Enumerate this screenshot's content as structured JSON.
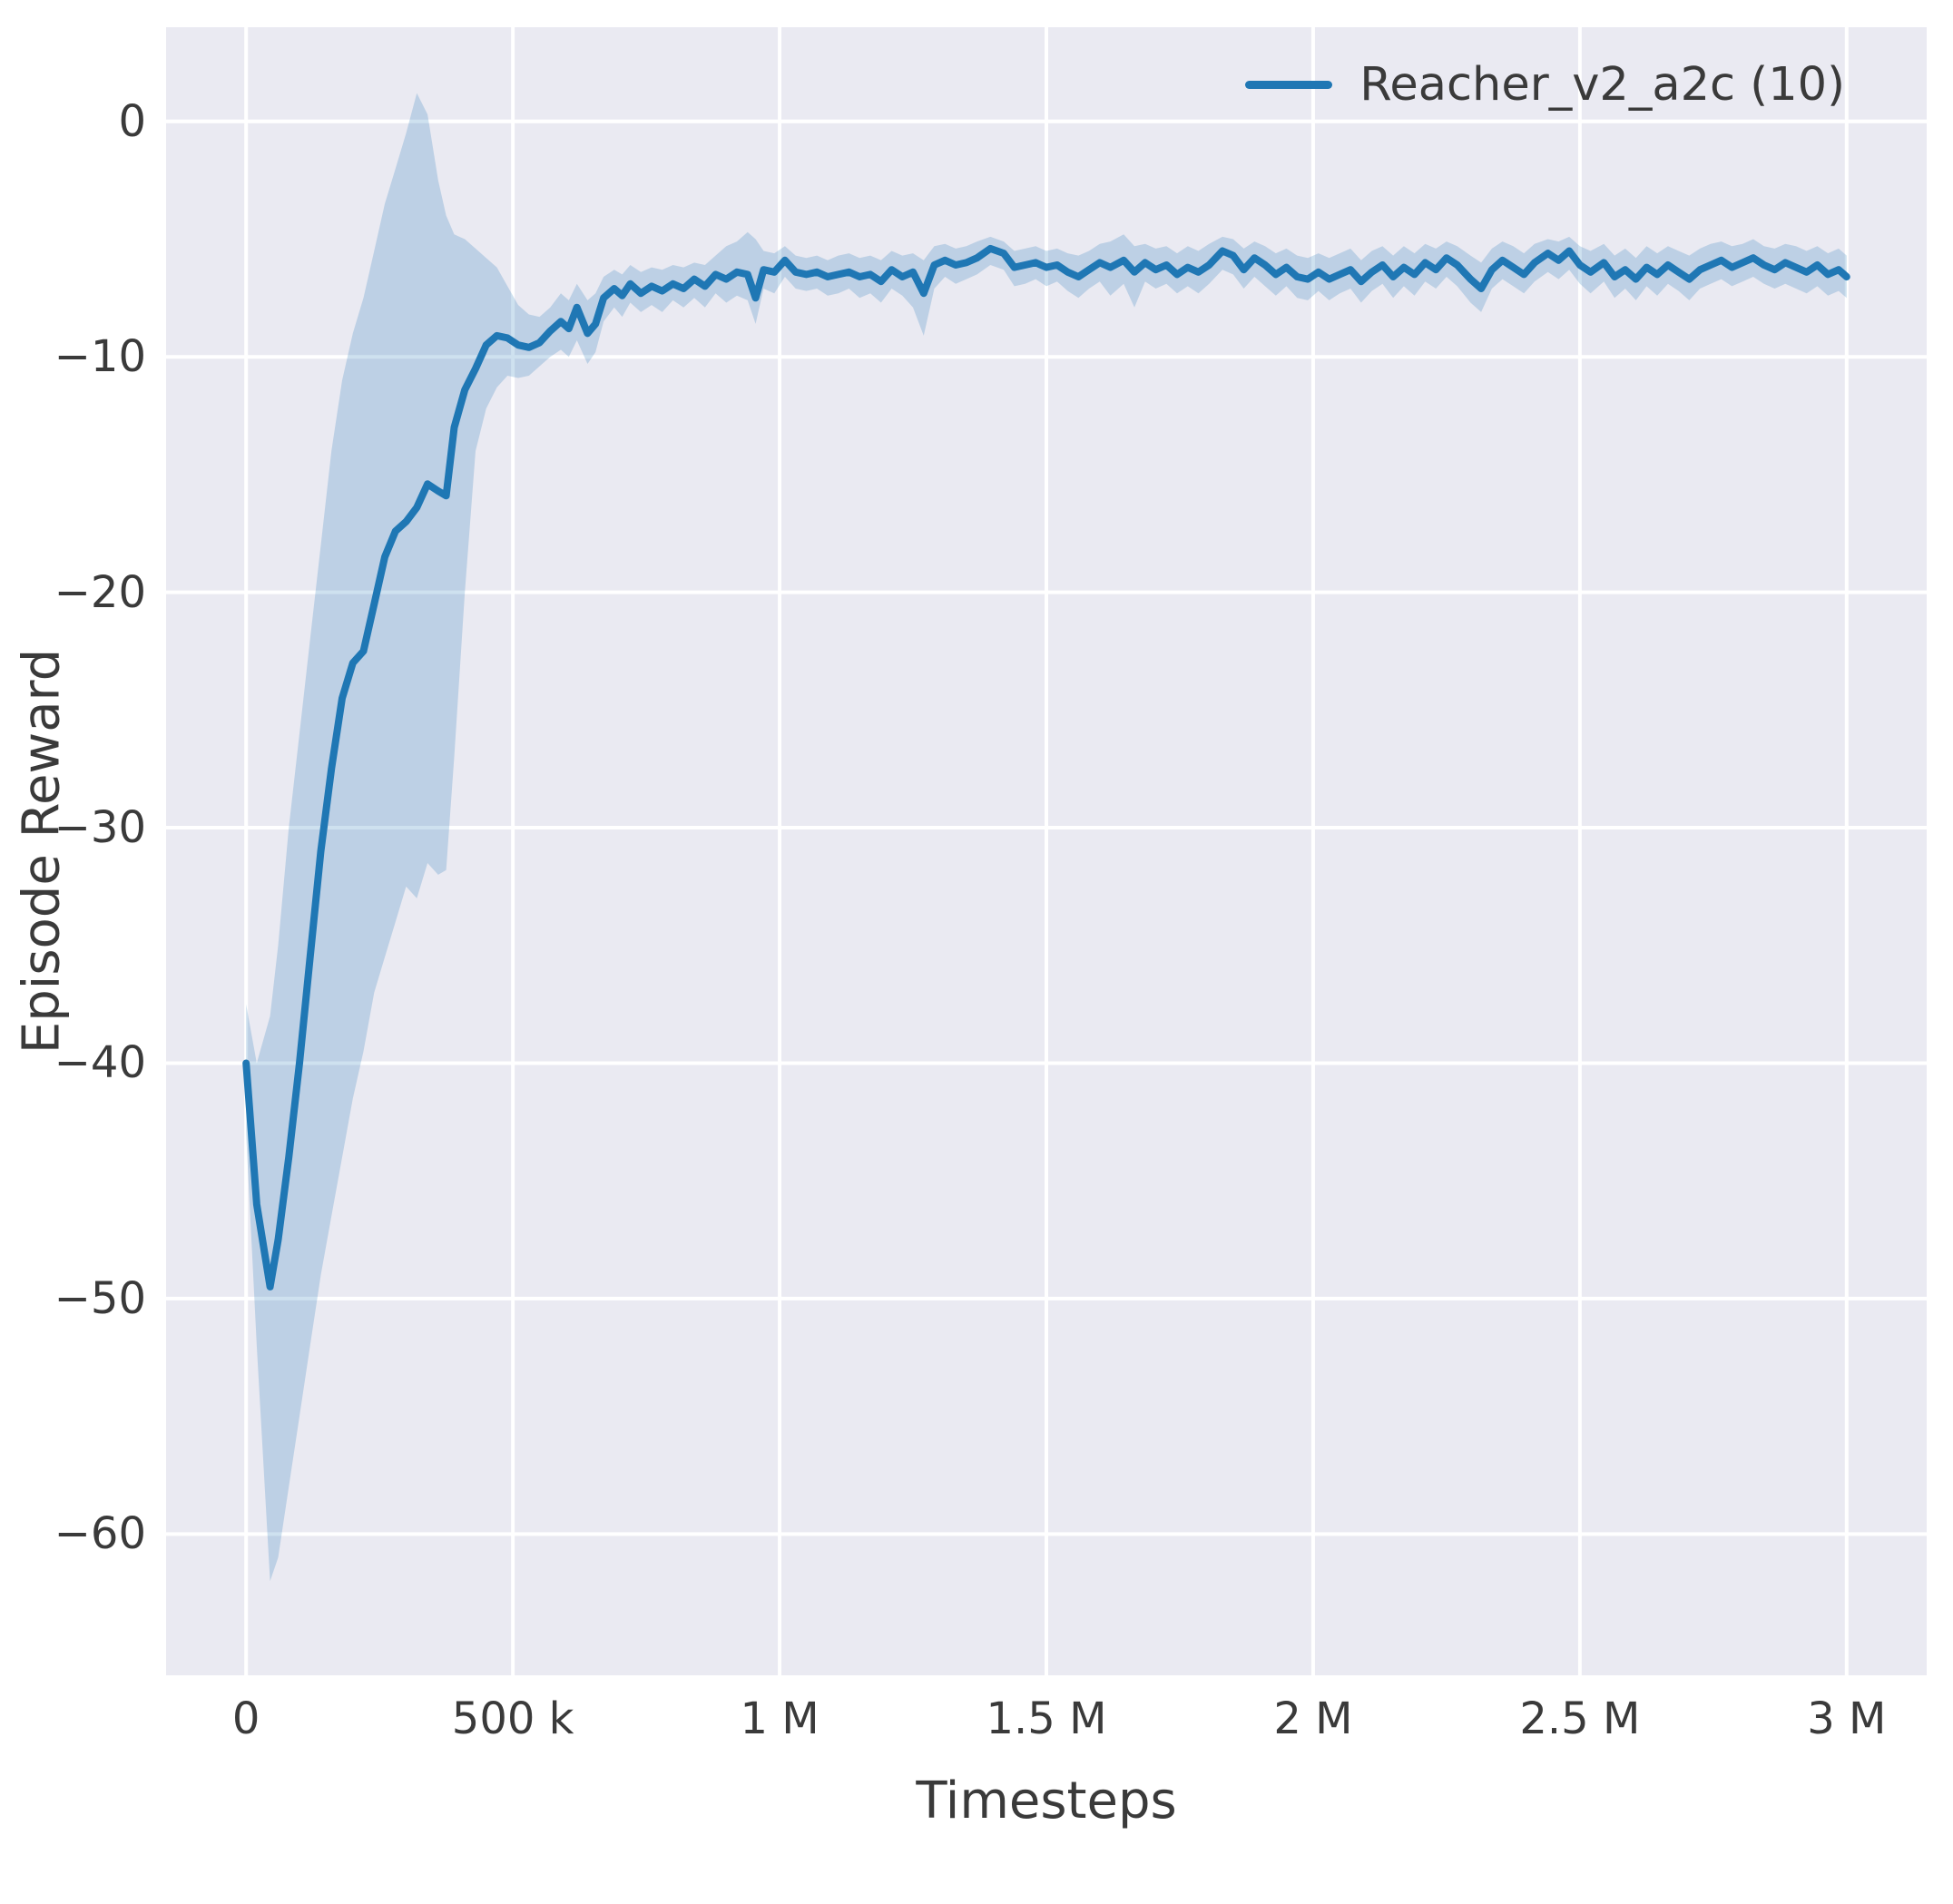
{
  "chart_data": {
    "type": "line",
    "title": "",
    "xlabel": "Timesteps",
    "ylabel": "Episode Reward",
    "grid": true,
    "legend_position": "upper right",
    "plot_background": "#eaeaf2",
    "grid_color": "#ffffff",
    "line_color": "#1f77b4",
    "band_color": "#1f77b4",
    "band_opacity": 0.22,
    "x_unit": "thousand timesteps",
    "xlim": [
      -150,
      3150
    ],
    "ylim": [
      -66,
      4
    ],
    "xticks": {
      "values": [
        0,
        500,
        1000,
        1500,
        2000,
        2500,
        3000
      ],
      "labels": [
        "0",
        "500 k",
        "1 M",
        "1.5 M",
        "2 M",
        "2.5 M",
        "3 M"
      ]
    },
    "yticks": {
      "values": [
        0,
        -10,
        -20,
        -30,
        -40,
        -50,
        -60
      ],
      "labels": [
        "0",
        "−10",
        "−20",
        "−30",
        "−40",
        "−50",
        "−60"
      ]
    },
    "series": [
      {
        "name": "Reacher_v2_a2c (10)",
        "points_format": [
          "x_k",
          "mean",
          "lower",
          "upper"
        ],
        "points": [
          [
            0,
            -40,
            -43,
            -37.5
          ],
          [
            20,
            -46,
            -52,
            -40
          ],
          [
            45,
            -49.5,
            -62,
            -38
          ],
          [
            60,
            -47.5,
            -61,
            -35
          ],
          [
            80,
            -44,
            -58,
            -30
          ],
          [
            100,
            -40,
            -55,
            -26
          ],
          [
            120,
            -35.5,
            -52,
            -22
          ],
          [
            140,
            -31,
            -49,
            -18
          ],
          [
            160,
            -27.5,
            -46.5,
            -14
          ],
          [
            180,
            -24.5,
            -44,
            -11
          ],
          [
            200,
            -23,
            -41.5,
            -9
          ],
          [
            220,
            -22.5,
            -39.5,
            -7.5
          ],
          [
            240,
            -20.5,
            -37,
            -5.5
          ],
          [
            260,
            -18.5,
            -35.5,
            -3.5
          ],
          [
            280,
            -17.4,
            -34,
            -2
          ],
          [
            300,
            -17,
            -32.5,
            -0.5
          ],
          [
            320,
            -16.4,
            -33,
            1.2
          ],
          [
            340,
            -15.4,
            -31.5,
            0.3
          ],
          [
            360,
            -15.7,
            -32,
            -2.5
          ],
          [
            375,
            -15.9,
            -31.8,
            -4
          ],
          [
            390,
            -13,
            -27,
            -4.8
          ],
          [
            410,
            -11.4,
            -20,
            -5
          ],
          [
            430,
            -10.5,
            -14,
            -5.4
          ],
          [
            450,
            -9.5,
            -12.2,
            -5.8
          ],
          [
            470,
            -9.1,
            -11.3,
            -6.2
          ],
          [
            490,
            -9.2,
            -10.8,
            -7
          ],
          [
            510,
            -9.5,
            -10.9,
            -7.8
          ],
          [
            530,
            -9.6,
            -10.8,
            -8.2
          ],
          [
            550,
            -9.4,
            -10.4,
            -8.3
          ],
          [
            570,
            -8.9,
            -10,
            -7.9
          ],
          [
            590,
            -8.5,
            -9.7,
            -7.3
          ],
          [
            605,
            -8.8,
            -10,
            -7.6
          ],
          [
            620,
            -7.9,
            -9.3,
            -6.9
          ],
          [
            640,
            -9,
            -10.3,
            -7.6
          ],
          [
            655,
            -8.6,
            -9.8,
            -7.3
          ],
          [
            670,
            -7.5,
            -8.5,
            -6.6
          ],
          [
            690,
            -7.1,
            -7.9,
            -6.3
          ],
          [
            705,
            -7.4,
            -8.3,
            -6.5
          ],
          [
            720,
            -6.9,
            -7.7,
            -6.1
          ],
          [
            740,
            -7.3,
            -8.1,
            -6.4
          ],
          [
            760,
            -7,
            -7.8,
            -6.2
          ],
          [
            780,
            -7.2,
            -8.1,
            -6.3
          ],
          [
            800,
            -6.9,
            -7.6,
            -6.1
          ],
          [
            820,
            -7.1,
            -7.9,
            -6.2
          ],
          [
            840,
            -6.7,
            -7.5,
            -6
          ],
          [
            860,
            -7,
            -7.9,
            -6.1
          ],
          [
            880,
            -6.5,
            -7.3,
            -5.7
          ],
          [
            900,
            -6.7,
            -7.7,
            -5.3
          ],
          [
            920,
            -6.4,
            -7.4,
            -5.1
          ],
          [
            940,
            -6.5,
            -7.6,
            -4.7
          ],
          [
            955,
            -7.5,
            -8.6,
            -5
          ],
          [
            970,
            -6.3,
            -7.1,
            -5.5
          ],
          [
            990,
            -6.4,
            -7.3,
            -5.6
          ],
          [
            1010,
            -5.9,
            -6.6,
            -5.3
          ],
          [
            1030,
            -6.4,
            -7.1,
            -5.7
          ],
          [
            1050,
            -6.5,
            -7.2,
            -5.8
          ],
          [
            1070,
            -6.4,
            -7.1,
            -5.7
          ],
          [
            1090,
            -6.6,
            -7.4,
            -5.9
          ],
          [
            1110,
            -6.5,
            -7.3,
            -5.7
          ],
          [
            1130,
            -6.4,
            -7.1,
            -5.6
          ],
          [
            1150,
            -6.6,
            -7.5,
            -5.8
          ],
          [
            1170,
            -6.5,
            -7.3,
            -5.7
          ],
          [
            1190,
            -6.8,
            -7.7,
            -5.9
          ],
          [
            1210,
            -6.3,
            -7.1,
            -5.5
          ],
          [
            1230,
            -6.6,
            -7.4,
            -5.7
          ],
          [
            1250,
            -6.4,
            -7.9,
            -5.6
          ],
          [
            1270,
            -7.3,
            -9.1,
            -5.9
          ],
          [
            1290,
            -6.1,
            -7.1,
            -5.3
          ],
          [
            1310,
            -5.9,
            -6.6,
            -5.2
          ],
          [
            1330,
            -6.1,
            -6.9,
            -5.4
          ],
          [
            1350,
            -6,
            -6.7,
            -5.3
          ],
          [
            1370,
            -5.8,
            -6.5,
            -5.1
          ],
          [
            1395,
            -5.4,
            -6.1,
            -4.9
          ],
          [
            1420,
            -5.6,
            -6.3,
            -5.1
          ],
          [
            1440,
            -6.2,
            -7,
            -5.5
          ],
          [
            1460,
            -6.1,
            -6.9,
            -5.4
          ],
          [
            1480,
            -6,
            -6.7,
            -5.3
          ],
          [
            1500,
            -6.2,
            -7,
            -5.5
          ],
          [
            1520,
            -6.1,
            -6.8,
            -5.4
          ],
          [
            1540,
            -6.4,
            -7.2,
            -5.6
          ],
          [
            1560,
            -6.6,
            -7.5,
            -5.7
          ],
          [
            1580,
            -6.3,
            -7.1,
            -5.5
          ],
          [
            1600,
            -6,
            -6.8,
            -5.2
          ],
          [
            1620,
            -6.2,
            -7.4,
            -5.1
          ],
          [
            1645,
            -5.9,
            -6.9,
            -4.8
          ],
          [
            1665,
            -6.4,
            -7.9,
            -5.3
          ],
          [
            1685,
            -6,
            -6.8,
            -5.2
          ],
          [
            1705,
            -6.3,
            -7.1,
            -5.4
          ],
          [
            1725,
            -6.1,
            -6.9,
            -5.3
          ],
          [
            1745,
            -6.5,
            -7.3,
            -5.6
          ],
          [
            1765,
            -6.2,
            -7,
            -5.3
          ],
          [
            1785,
            -6.4,
            -7.3,
            -5.5
          ],
          [
            1805,
            -6.1,
            -6.9,
            -5.2
          ],
          [
            1830,
            -5.5,
            -6.3,
            -4.9
          ],
          [
            1850,
            -5.7,
            -6.5,
            -5
          ],
          [
            1870,
            -6.3,
            -7.1,
            -5.4
          ],
          [
            1890,
            -5.8,
            -6.6,
            -5.1
          ],
          [
            1910,
            -6.1,
            -7,
            -5.3
          ],
          [
            1930,
            -6.5,
            -7.4,
            -5.6
          ],
          [
            1950,
            -6.2,
            -7,
            -5.4
          ],
          [
            1970,
            -6.6,
            -7.5,
            -5.7
          ],
          [
            1990,
            -6.7,
            -7.6,
            -5.8
          ],
          [
            2010,
            -6.4,
            -7.2,
            -5.6
          ],
          [
            2030,
            -6.7,
            -7.6,
            -5.8
          ],
          [
            2050,
            -6.5,
            -7.3,
            -5.6
          ],
          [
            2070,
            -6.3,
            -7.1,
            -5.4
          ],
          [
            2090,
            -6.8,
            -7.7,
            -5.9
          ],
          [
            2110,
            -6.4,
            -7.2,
            -5.5
          ],
          [
            2130,
            -6.1,
            -6.9,
            -5.3
          ],
          [
            2150,
            -6.6,
            -7.5,
            -5.7
          ],
          [
            2170,
            -6.2,
            -7,
            -5.3
          ],
          [
            2190,
            -6.5,
            -7.4,
            -5.6
          ],
          [
            2210,
            -6,
            -6.8,
            -5.2
          ],
          [
            2230,
            -6.3,
            -7.1,
            -5.4
          ],
          [
            2250,
            -5.8,
            -6.6,
            -5.1
          ],
          [
            2270,
            -6.1,
            -7,
            -5.3
          ],
          [
            2295,
            -6.7,
            -7.7,
            -5.7
          ],
          [
            2315,
            -7.1,
            -8.1,
            -6
          ],
          [
            2335,
            -6.3,
            -7.1,
            -5.4
          ],
          [
            2355,
            -5.9,
            -6.7,
            -5.1
          ],
          [
            2375,
            -6.2,
            -7,
            -5.3
          ],
          [
            2395,
            -6.5,
            -7.3,
            -5.6
          ],
          [
            2415,
            -6,
            -6.8,
            -5.2
          ],
          [
            2440,
            -5.6,
            -6.4,
            -5
          ],
          [
            2460,
            -5.9,
            -6.7,
            -5.1
          ],
          [
            2480,
            -5.5,
            -6.3,
            -4.9
          ],
          [
            2500,
            -6.1,
            -6.9,
            -5.3
          ],
          [
            2520,
            -6.4,
            -7.3,
            -5.5
          ],
          [
            2545,
            -6,
            -6.8,
            -5.2
          ],
          [
            2565,
            -6.6,
            -7.5,
            -5.7
          ],
          [
            2585,
            -6.3,
            -7.1,
            -5.4
          ],
          [
            2605,
            -6.7,
            -7.6,
            -5.8
          ],
          [
            2625,
            -6.2,
            -7,
            -5.3
          ],
          [
            2645,
            -6.5,
            -7.4,
            -5.6
          ],
          [
            2665,
            -6.1,
            -6.9,
            -5.3
          ],
          [
            2685,
            -6.4,
            -7.2,
            -5.5
          ],
          [
            2705,
            -6.7,
            -7.6,
            -5.7
          ],
          [
            2725,
            -6.3,
            -7.1,
            -5.4
          ],
          [
            2745,
            -6.1,
            -6.9,
            -5.2
          ],
          [
            2765,
            -5.9,
            -6.7,
            -5.1
          ],
          [
            2785,
            -6.2,
            -7,
            -5.3
          ],
          [
            2805,
            -6,
            -6.8,
            -5.2
          ],
          [
            2825,
            -5.8,
            -6.6,
            -5
          ],
          [
            2845,
            -6.1,
            -6.9,
            -5.3
          ],
          [
            2865,
            -6.3,
            -7.1,
            -5.4
          ],
          [
            2885,
            -6,
            -6.9,
            -5.2
          ],
          [
            2905,
            -6.2,
            -7.1,
            -5.3
          ],
          [
            2925,
            -6.4,
            -7.3,
            -5.5
          ],
          [
            2945,
            -6.1,
            -7,
            -5.3
          ],
          [
            2965,
            -6.5,
            -7.4,
            -5.6
          ],
          [
            2985,
            -6.3,
            -7.2,
            -5.4
          ],
          [
            3000,
            -6.6,
            -7.5,
            -5.7
          ]
        ]
      }
    ]
  }
}
